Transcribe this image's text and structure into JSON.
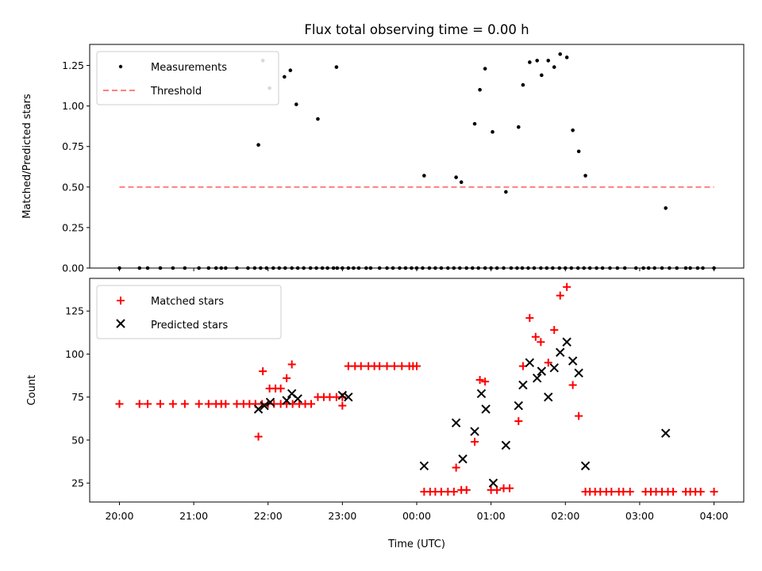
{
  "chart_data": [
    {
      "type": "scatter",
      "title": "Flux total observing time = 0.00 h",
      "xlabel": "",
      "ylabel": "Matched/Predicted stars",
      "xlim": [
        -4.4,
        4.4
      ],
      "ylim": [
        0,
        1.38
      ],
      "yticks": [
        0.0,
        0.25,
        0.5,
        0.75,
        1.0,
        1.25
      ],
      "ytick_labels": [
        "0.00",
        "0.25",
        "0.50",
        "0.75",
        "1.00",
        "1.25"
      ],
      "legend_position": "upper-left",
      "series": [
        {
          "name": "Measurements",
          "marker": "dot",
          "color": "#000000",
          "x": [
            -4.0,
            -3.73,
            -3.62,
            -3.45,
            -3.28,
            -3.12,
            -2.93,
            -2.8,
            -2.7,
            -2.63,
            -2.57,
            -2.42,
            -2.27,
            -2.18,
            -2.1,
            -2.02,
            -1.93,
            -1.85,
            -1.77,
            -1.68,
            -1.6,
            -1.52,
            -1.43,
            -1.35,
            -1.27,
            -1.2,
            -1.12,
            -1.07,
            -1.0,
            -0.92,
            -0.85,
            -0.78,
            -0.68,
            -0.62,
            -0.5,
            -0.4,
            -0.32,
            -0.23,
            -0.15,
            -0.07,
            0.0,
            0.08,
            0.17,
            0.25,
            0.33,
            0.42,
            0.5,
            0.58,
            0.67,
            0.75,
            0.83,
            0.92,
            1.0,
            1.08,
            1.17,
            1.27,
            1.35,
            1.42,
            1.5,
            1.58,
            1.67,
            1.75,
            1.83,
            1.92,
            2.0,
            2.08,
            2.17,
            2.25,
            2.33,
            2.42,
            2.5,
            2.6,
            2.7,
            2.8,
            2.95,
            3.05,
            3.12,
            3.2,
            3.3,
            3.4,
            3.5,
            3.62,
            3.68,
            3.78,
            3.85,
            4.0
          ],
          "y": [
            0,
            0,
            0,
            0,
            0,
            0,
            0,
            0,
            0,
            0,
            0,
            0,
            0,
            0,
            0,
            0,
            0,
            0,
            0,
            0,
            0,
            0,
            0,
            0,
            0,
            0,
            0,
            0,
            0,
            0,
            0,
            0,
            0,
            0,
            0,
            0,
            0,
            0,
            0,
            0,
            0,
            0,
            0,
            0,
            0,
            0,
            0,
            0,
            0,
            0,
            0,
            0,
            0,
            0,
            0,
            0,
            0,
            0,
            0,
            0,
            0,
            0,
            0,
            0,
            0,
            0,
            0,
            0,
            0,
            0,
            0,
            0,
            0,
            0,
            0,
            0,
            0,
            0,
            0,
            0,
            0,
            0,
            0,
            0,
            0,
            0
          ]
        },
        {
          "name": "",
          "marker": "dot",
          "color": "#000000",
          "x": [
            -2.13,
            -2.07,
            -1.98,
            -1.78,
            -1.7,
            -1.62,
            -1.33,
            -1.08,
            0.1,
            0.53,
            0.6,
            0.78,
            0.85,
            0.92,
            1.02,
            1.2,
            1.37,
            1.43,
            1.52,
            1.62,
            1.68,
            1.77,
            1.85,
            1.93,
            2.02,
            2.1,
            2.18,
            2.27,
            3.35
          ],
          "y": [
            0.76,
            1.28,
            1.11,
            1.18,
            1.22,
            1.01,
            0.92,
            1.24,
            0.57,
            0.56,
            0.53,
            0.89,
            1.1,
            1.23,
            0.84,
            0.47,
            0.87,
            1.13,
            1.27,
            1.28,
            1.19,
            1.28,
            1.24,
            1.32,
            1.3,
            0.85,
            0.72,
            0.57,
            0.37
          ]
        },
        {
          "name": "Threshold",
          "type": "line",
          "style": "dashed",
          "color": "#ff7f7f",
          "x": [
            -4.0,
            4.0
          ],
          "y": [
            0.5,
            0.5
          ]
        }
      ]
    },
    {
      "type": "scatter",
      "title": "",
      "xlabel": "Time (UTC)",
      "ylabel": "Count",
      "xlim": [
        -4.4,
        4.4
      ],
      "ylim": [
        14,
        144
      ],
      "yticks": [
        25,
        50,
        75,
        100,
        125
      ],
      "ytick_labels": [
        "25",
        "50",
        "75",
        "100",
        "125"
      ],
      "xticks": [
        -4,
        -3,
        -2,
        -1,
        0,
        1,
        2,
        3,
        4
      ],
      "xtick_labels": [
        "20:00",
        "21:00",
        "22:00",
        "23:00",
        "00:00",
        "01:00",
        "02:00",
        "03:00",
        "04:00"
      ],
      "legend_position": "upper-left",
      "series": [
        {
          "name": "Matched stars",
          "marker": "plus",
          "color": "#ff0000",
          "x": [
            -4.0,
            -3.73,
            -3.62,
            -3.45,
            -3.28,
            -3.12,
            -2.93,
            -2.8,
            -2.7,
            -2.63,
            -2.57,
            -2.42,
            -2.33,
            -2.25,
            -2.17,
            -2.08,
            -2.0,
            -1.92,
            -1.83,
            -1.75,
            -1.67,
            -1.58,
            -1.5,
            -1.42,
            -1.33,
            -1.25,
            -1.17,
            -1.08,
            -1.0,
            -0.92,
            -0.83,
            -0.75,
            -0.65,
            -0.57,
            -0.5,
            -0.4,
            -0.3,
            -0.2,
            -0.1,
            -0.05,
            0.0,
            0.1,
            0.18,
            0.25,
            0.33,
            0.42,
            0.5,
            0.6,
            0.67,
            1.0,
            1.08,
            1.17,
            1.25,
            -2.13,
            -2.07,
            -1.98,
            -1.9,
            -1.83,
            -1.75,
            -1.68,
            -1.0,
            0.53,
            0.78,
            0.85,
            0.92,
            1.37,
            1.43,
            1.52,
            1.6,
            1.67,
            1.77,
            1.85,
            1.93,
            2.02,
            2.1,
            2.18,
            2.27,
            2.33,
            2.4,
            2.47,
            2.55,
            2.62,
            2.72,
            2.78,
            2.87,
            3.08,
            3.15,
            3.22,
            3.3,
            3.38,
            3.45,
            3.62,
            3.68,
            3.75,
            3.82,
            4.0
          ],
          "y": [
            71,
            71,
            71,
            71,
            71,
            71,
            71,
            71,
            71,
            71,
            71,
            71,
            71,
            71,
            71,
            71,
            71,
            71,
            71,
            71,
            71,
            71,
            71,
            71,
            75,
            75,
            75,
            75,
            75,
            93,
            93,
            93,
            93,
            93,
            93,
            93,
            93,
            93,
            93,
            93,
            93,
            20,
            20,
            20,
            20,
            20,
            20,
            21,
            21,
            21,
            21,
            22,
            22,
            52,
            90,
            80,
            80,
            80,
            86,
            94,
            70,
            34,
            49,
            85,
            84,
            61,
            93,
            121,
            110,
            107,
            95,
            114,
            134,
            139,
            82,
            64,
            20,
            20,
            20,
            20,
            20,
            20,
            20,
            20,
            20,
            20,
            20,
            20,
            20,
            20,
            20,
            20,
            20,
            20,
            20,
            20
          ]
        },
        {
          "name": "Predicted stars",
          "marker": "x",
          "color": "#000000",
          "x": [
            -2.13,
            -2.05,
            -1.97,
            -1.75,
            -1.68,
            -1.6,
            -1.0,
            -0.92,
            0.1,
            0.53,
            0.62,
            0.78,
            0.87,
            0.93,
            1.03,
            1.2,
            1.37,
            1.43,
            1.52,
            1.62,
            1.68,
            1.77,
            1.85,
            1.93,
            2.02,
            2.1,
            2.18,
            2.27,
            3.35
          ],
          "y": [
            68,
            70,
            72,
            73,
            77,
            74,
            76,
            75,
            35,
            60,
            39,
            55,
            77,
            68,
            25,
            47,
            70,
            82,
            95,
            86,
            90,
            75,
            92,
            101,
            107,
            96,
            89,
            35,
            54
          ]
        }
      ]
    }
  ]
}
